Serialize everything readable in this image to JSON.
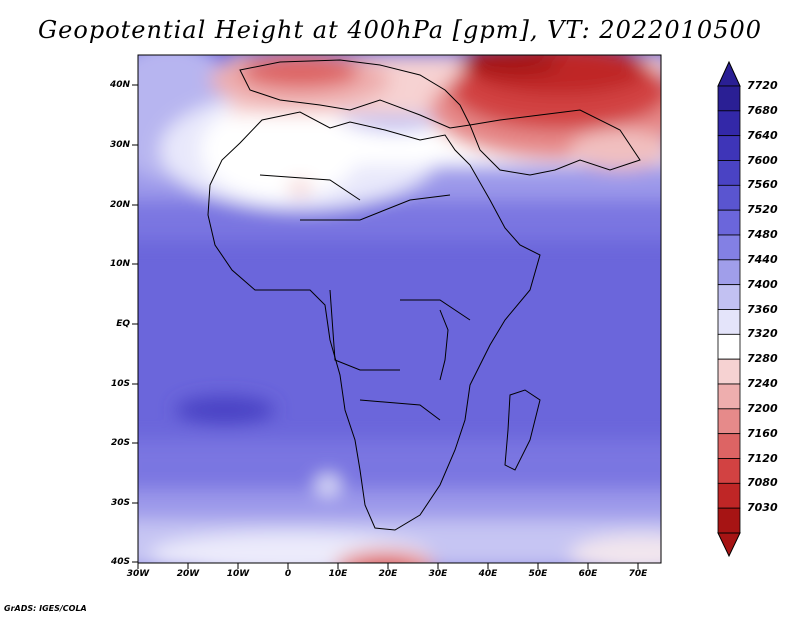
{
  "title": "Geopotential Height at 400hPa [gpm], VT: 2022010500",
  "credit": "GrADS: IGES/COLA",
  "map": {
    "lat_labels": [
      "40N",
      "30N",
      "20N",
      "10N",
      "EQ",
      "10S",
      "20S",
      "30S",
      "40S"
    ],
    "lon_labels": [
      "30W",
      "20W",
      "10W",
      "0",
      "10E",
      "20E",
      "30E",
      "40E",
      "50E",
      "60E",
      "70E"
    ]
  },
  "colorbar": {
    "labels": [
      "7720",
      "7680",
      "7640",
      "7600",
      "7560",
      "7520",
      "7480",
      "7440",
      "7400",
      "7360",
      "7320",
      "7280",
      "7240",
      "7200",
      "7160",
      "7120",
      "7080",
      "7030"
    ],
    "colors_top_to_bottom": [
      "#2a1f94",
      "#3328a8",
      "#3e35b8",
      "#4a43c4",
      "#5a55d0",
      "#6b66db",
      "#8380e4",
      "#a09eea",
      "#c2c1f2",
      "#e4e4fa",
      "#ffffff",
      "#f6d2d2",
      "#eeaeae",
      "#e68a8a",
      "#dd6464",
      "#d24242",
      "#bf2626",
      "#a61414"
    ]
  }
}
